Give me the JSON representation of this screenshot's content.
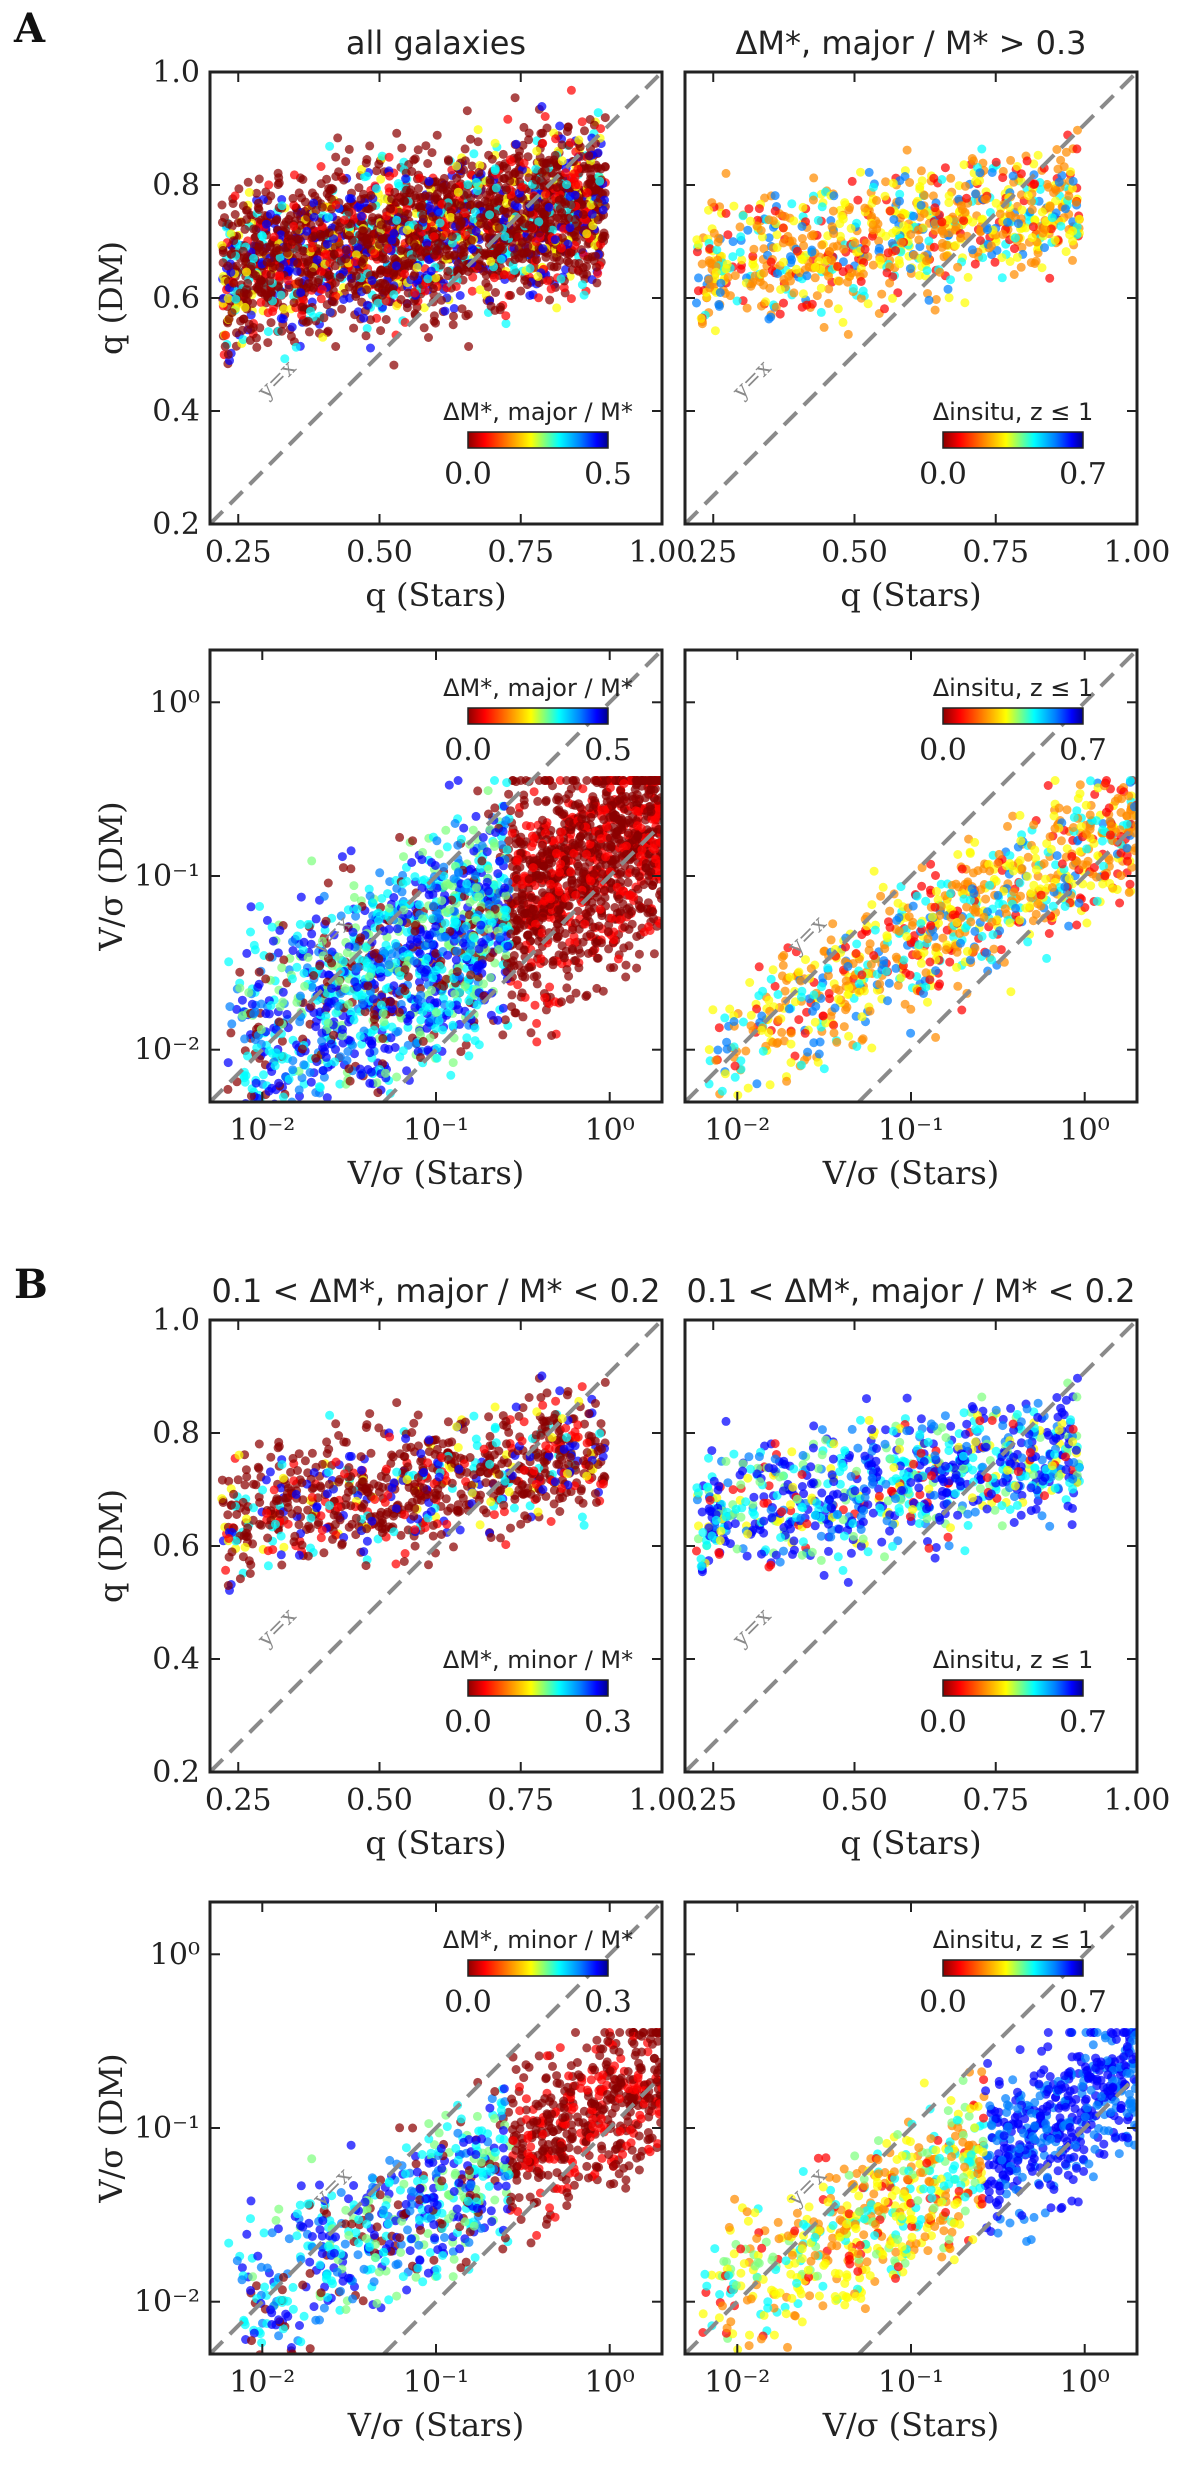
{
  "figure": {
    "section_labels": [
      "A",
      "B"
    ]
  },
  "colormap": [
    "#8b0000",
    "#ff0000",
    "#ff8c00",
    "#ffff00",
    "#7fff7f",
    "#00ffff",
    "#0080ff",
    "#0000ff",
    "#00008b"
  ],
  "chart_data": [
    {
      "id": "A1",
      "type": "scatter",
      "title": "all galaxies",
      "xlabel": "q (Stars)",
      "ylabel": "q (DM)",
      "scale": "linear",
      "xlim": [
        0.2,
        1.0
      ],
      "ylim": [
        0.2,
        1.0
      ],
      "xticks": [
        "0.25",
        "0.50",
        "0.75",
        "1.00"
      ],
      "yticks": [
        "0.2",
        "0.4",
        "0.6",
        "0.8",
        "1.0"
      ],
      "diagonals": [
        {
          "ratio": 1,
          "label": "y=x"
        }
      ],
      "colorbar": {
        "label": "ΔM*, major / M*",
        "min": "0.0",
        "max": "0.5",
        "placement": "lower-right"
      },
      "points_described": "~10000 galaxies, q(DM) mostly 0.55-0.95 over q(Stars) 0.2-0.9; color mostly red (low ΔM) with blue/cyan at higher q(Stars)"
    },
    {
      "id": "A2",
      "type": "scatter",
      "title": "ΔM*, major / M* > 0.3",
      "xlabel": "q (Stars)",
      "ylabel": "",
      "scale": "linear",
      "xlim": [
        0.2,
        1.0
      ],
      "ylim": [
        0.2,
        1.0
      ],
      "xticks": [
        ".25",
        "0.50",
        "0.75",
        "1.00"
      ],
      "yticks": [],
      "diagonals": [
        {
          "ratio": 1,
          "label": "y=x"
        }
      ],
      "colorbar": {
        "label": "Δinsitu, z ≤ 1",
        "min": "0.0",
        "max": "0.7",
        "placement": "lower-right"
      },
      "points_described": "~2000 galaxies along q(DM) 0.5-0.9, colored orange/yellow with cyan"
    },
    {
      "id": "A3",
      "type": "scatter",
      "title": "",
      "xlabel": "V/σ (Stars)",
      "ylabel": "V/σ (DM)",
      "scale": "log",
      "xlim": [
        0.005,
        2.0
      ],
      "ylim": [
        0.005,
        2.0
      ],
      "xticks": [
        "10⁻²",
        "10⁻¹",
        "10⁰"
      ],
      "yticks": [
        "10⁻²",
        "10⁻¹",
        "10⁰"
      ],
      "diagonals": [
        {
          "ratio": 1,
          "label": "y=x"
        },
        {
          "ratio": 0.1,
          "label": "y=0.1x"
        }
      ],
      "colorbar": {
        "label": "ΔM*, major / M*",
        "min": "0.0",
        "max": "0.5",
        "placement": "upper-right"
      },
      "points_described": "dense cloud, V/σ(DM) 0.01-0.3, red at high V/σ(Stars), blue/cyan elsewhere"
    },
    {
      "id": "A4",
      "type": "scatter",
      "title": "",
      "xlabel": "V/σ (Stars)",
      "ylabel": "",
      "scale": "log",
      "xlim": [
        0.005,
        2.0
      ],
      "ylim": [
        0.005,
        2.0
      ],
      "xticks": [
        "10⁻²",
        "10⁻¹",
        "10⁰"
      ],
      "yticks": [],
      "diagonals": [
        {
          "ratio": 1,
          "label": "y=x"
        },
        {
          "ratio": 0.1,
          "label": "y=0.1x"
        }
      ],
      "colorbar": {
        "label": "Δinsitu, z ≤ 1",
        "min": "0.0",
        "max": "0.7",
        "placement": "upper-right"
      },
      "points_described": "band along y≈0.3x, orange/yellow with scattered blue"
    },
    {
      "id": "B1",
      "type": "scatter",
      "title": "0.1 < ΔM*, major / M* < 0.2",
      "xlabel": "q (Stars)",
      "ylabel": "q (DM)",
      "scale": "linear",
      "xlim": [
        0.2,
        1.0
      ],
      "ylim": [
        0.2,
        1.0
      ],
      "xticks": [
        "0.25",
        "0.50",
        "0.75",
        "1.00"
      ],
      "yticks": [
        "0.2",
        "0.4",
        "0.6",
        "0.8",
        "1.0"
      ],
      "diagonals": [
        {
          "ratio": 1,
          "label": "y=x"
        }
      ],
      "colorbar": {
        "label": "ΔM*, minor / M*",
        "min": "0.0",
        "max": "0.3",
        "placement": "lower-right"
      },
      "points_described": "~1500 galaxies, q(DM) 0.6-0.9, mostly dark red"
    },
    {
      "id": "B2",
      "type": "scatter",
      "title": "0.1 < ΔM*, major / M* < 0.2",
      "xlabel": "q (Stars)",
      "ylabel": "",
      "scale": "linear",
      "xlim": [
        0.2,
        1.0
      ],
      "ylim": [
        0.2,
        1.0
      ],
      "xticks": [
        ".25",
        "0.50",
        "0.75",
        "1.00"
      ],
      "yticks": [],
      "diagonals": [
        {
          "ratio": 1,
          "label": "y=x"
        }
      ],
      "colorbar": {
        "label": "Δinsitu, z ≤ 1",
        "min": "0.0",
        "max": "0.7",
        "placement": "lower-right"
      },
      "points_described": "~1500 galaxies, q(DM) 0.6-0.9, mostly blue/cyan"
    },
    {
      "id": "B3",
      "type": "scatter",
      "title": "",
      "xlabel": "V/σ (Stars)",
      "ylabel": "V/σ (DM)",
      "scale": "log",
      "xlim": [
        0.005,
        2.0
      ],
      "ylim": [
        0.005,
        2.0
      ],
      "xticks": [
        "10⁻²",
        "10⁻¹",
        "10⁰"
      ],
      "yticks": [
        "10⁻²",
        "10⁻¹",
        "10⁰"
      ],
      "diagonals": [
        {
          "ratio": 1,
          "label": "y=x"
        },
        {
          "ratio": 0.1,
          "label": "y=0.1x"
        }
      ],
      "colorbar": {
        "label": "ΔM*, minor / M*",
        "min": "0.0",
        "max": "0.3",
        "placement": "upper-right"
      },
      "points_described": "diagonal band, red at high V/σ(Stars), blue/cyan at low"
    },
    {
      "id": "B4",
      "type": "scatter",
      "title": "",
      "xlabel": "V/σ (Stars)",
      "ylabel": "",
      "scale": "log",
      "xlim": [
        0.005,
        2.0
      ],
      "ylim": [
        0.005,
        2.0
      ],
      "xticks": [
        "10⁻²",
        "10⁻¹",
        "10⁰"
      ],
      "yticks": [],
      "diagonals": [
        {
          "ratio": 1,
          "label": "y=x"
        },
        {
          "ratio": 0.1,
          "label": "y=0.1x"
        }
      ],
      "colorbar": {
        "label": "Δinsitu, z ≤ 1",
        "min": "0.0",
        "max": "0.7",
        "placement": "upper-right"
      },
      "points_described": "diagonal band, blue at high V/σ(Stars), yellow/orange at low"
    }
  ]
}
